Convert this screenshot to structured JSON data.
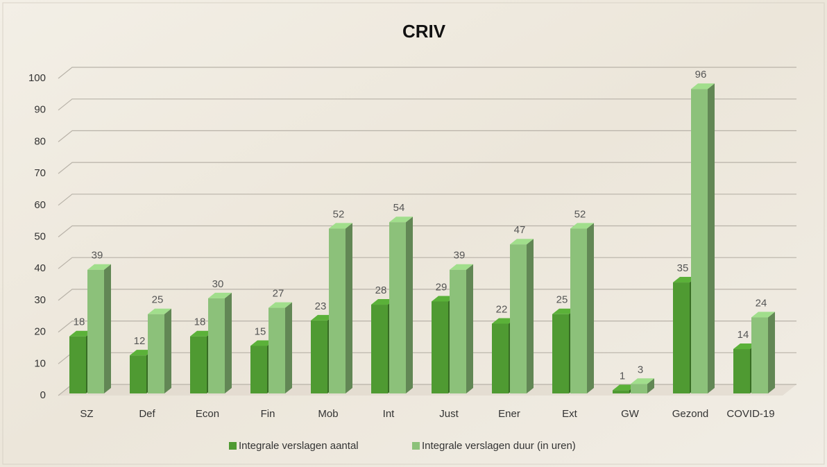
{
  "chart_data": {
    "type": "bar3d",
    "title": "CRIV",
    "categories": [
      "SZ",
      "Def",
      "Econ",
      "Fin",
      "Mob",
      "Int",
      "Just",
      "Ener",
      "Ext",
      "GW",
      "Gezond",
      "COVID-19"
    ],
    "series": [
      {
        "name": "Integrale verslagen aantal",
        "color": "#4f9a32",
        "values": [
          18,
          12,
          18,
          15,
          23,
          28,
          29,
          22,
          25,
          1,
          35,
          14
        ]
      },
      {
        "name": "Integrale verslagen duur (in uren)",
        "color": "#8cc17a",
        "values": [
          39,
          25,
          30,
          27,
          52,
          54,
          39,
          47,
          52,
          3,
          96,
          24
        ]
      }
    ],
    "ylim": [
      0,
      100
    ],
    "yticks": [
      0,
      10,
      20,
      30,
      40,
      50,
      60,
      70,
      80,
      90,
      100
    ],
    "grid": true,
    "legend": "bottom"
  }
}
